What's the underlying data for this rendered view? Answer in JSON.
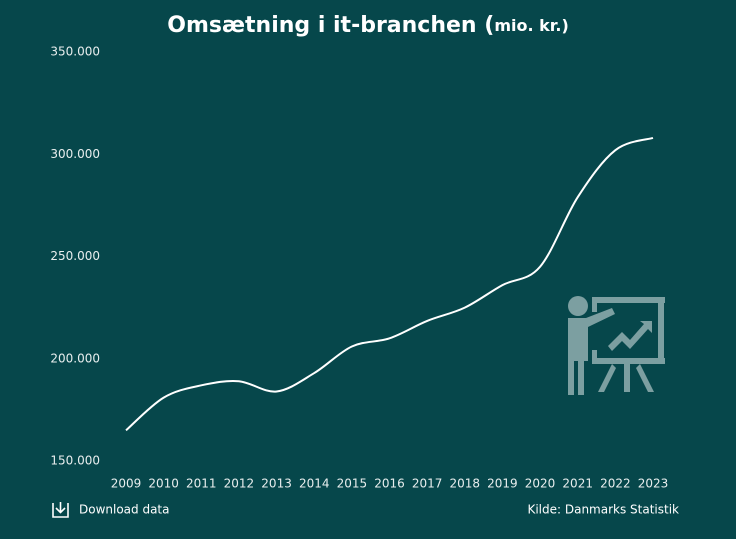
{
  "chart_data": {
    "type": "line",
    "title": "Omsætning i it-branchen (",
    "title_unit": "mio. kr.)",
    "x": [
      2009,
      2010,
      2011,
      2012,
      2013,
      2014,
      2015,
      2016,
      2017,
      2018,
      2019,
      2020,
      2021,
      2022,
      2023
    ],
    "xlim": [
      2008.5,
      2023.5
    ],
    "xticks": [
      2009,
      2010,
      2011,
      2012,
      2013,
      2014,
      2015,
      2016,
      2017,
      2018,
      2019,
      2020,
      2021,
      2022,
      2023
    ],
    "series": [
      {
        "color": "#ffffff",
        "values": [
          165000,
          181000,
          187000,
          189000,
          184000,
          193000,
          206000,
          210000,
          218500,
          225000,
          236000,
          245000,
          279000,
          302000,
          308000
        ]
      }
    ],
    "ylim": [
      150000,
      350000
    ],
    "yticks": [
      {
        "value": 150000,
        "label": "150.000"
      },
      {
        "value": 200000,
        "label": "200.000"
      },
      {
        "value": 250000,
        "label": "250.000"
      },
      {
        "value": 300000,
        "label": "300.000"
      },
      {
        "value": 350000,
        "label": "350.000"
      }
    ],
    "grid": false,
    "download_label": "Download data",
    "source": "Kilde: Danmarks Statistik"
  }
}
